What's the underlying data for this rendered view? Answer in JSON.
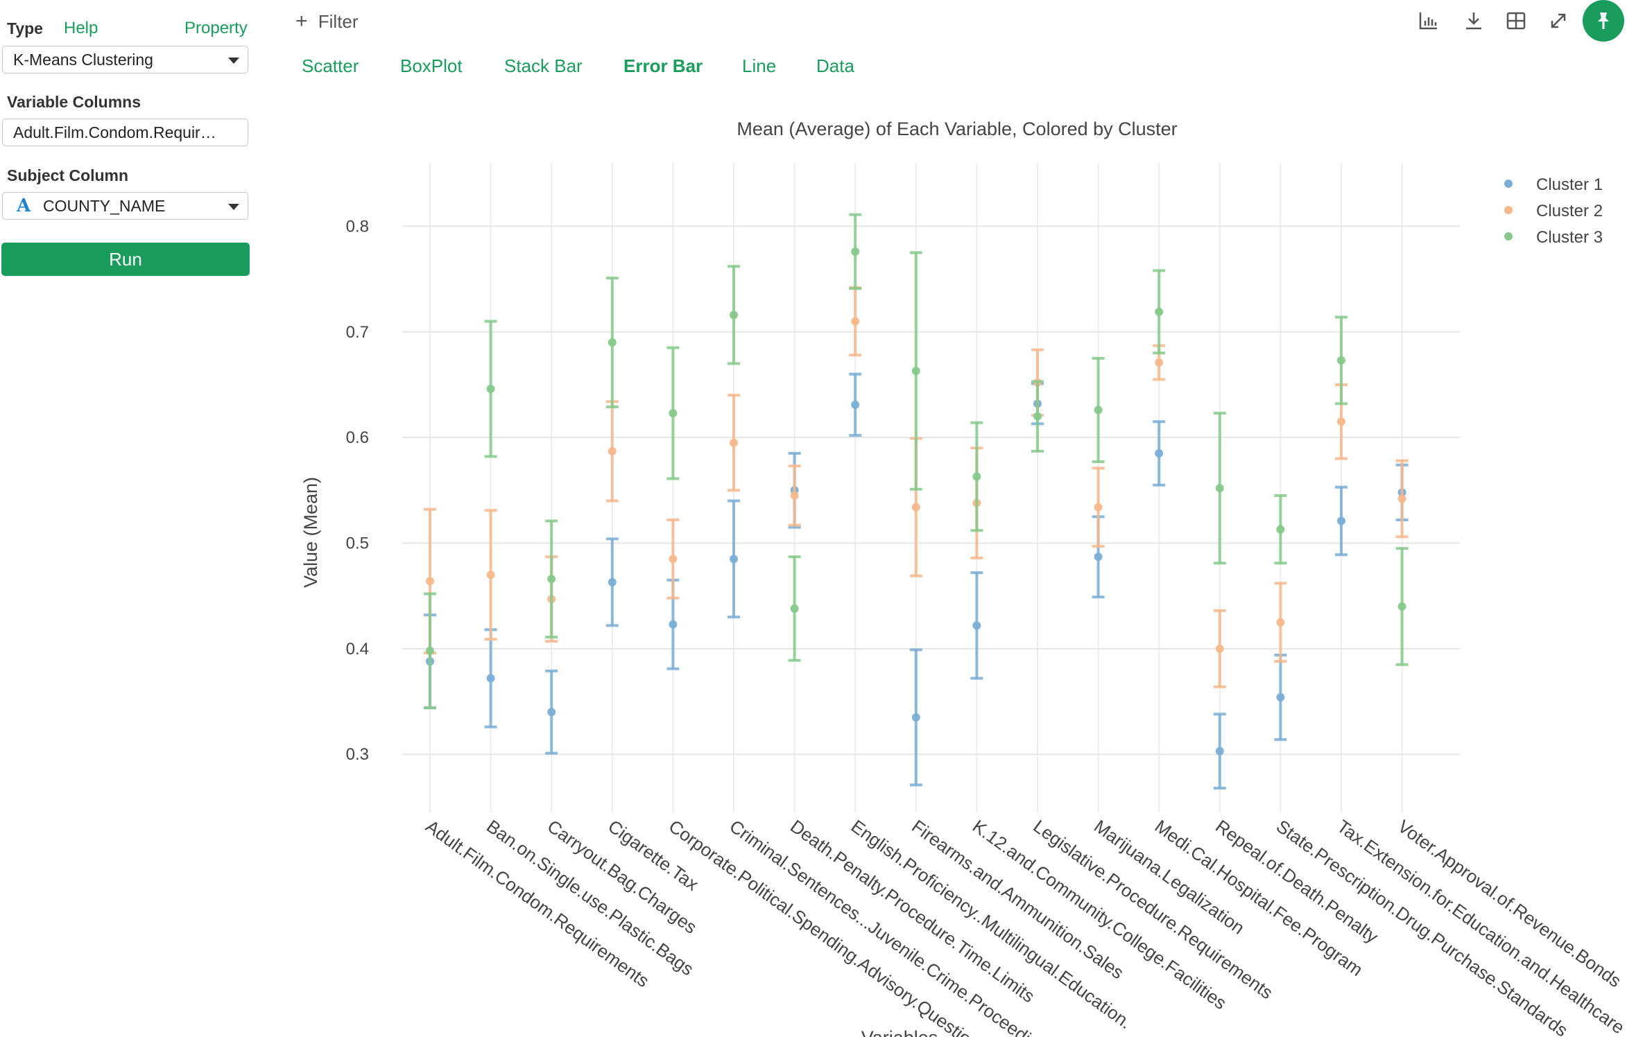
{
  "sidebar": {
    "type_label": "Type",
    "help_link": "Help",
    "property_link": "Property",
    "type_value": "K-Means Clustering",
    "variable_columns_label": "Variable Columns",
    "variable_columns_value": "Adult.Film.Condom.Requir…",
    "subject_column_label": "Subject Column",
    "subject_type_icon": "A",
    "subject_column_value": "COUNTY_NAME",
    "run_label": "Run"
  },
  "toolbar": {
    "filter_icon": "+",
    "filter_label": "Filter"
  },
  "tabs": [
    {
      "label": "Scatter",
      "active": false
    },
    {
      "label": "BoxPlot",
      "active": false
    },
    {
      "label": "Stack Bar",
      "active": false
    },
    {
      "label": "Error Bar",
      "active": true
    },
    {
      "label": "Line",
      "active": false
    },
    {
      "label": "Data",
      "active": false
    }
  ],
  "colors": {
    "accent": "#1a9c5c",
    "cluster_1": "#7aaed6",
    "cluster_2": "#f6b88c",
    "cluster_3": "#86c98a"
  },
  "chart_data": {
    "type": "scatter",
    "title": "Mean (Average) of Each Variable, Colored by Cluster",
    "xlabel": "Variables",
    "ylabel": "Value (Mean)",
    "ylim": [
      0.245,
      0.86
    ],
    "yticks": [
      0.3,
      0.4,
      0.5,
      0.6,
      0.7,
      0.8
    ],
    "ytick_labels": [
      "0.3",
      "0.4",
      "0.5",
      "0.6",
      "0.7",
      "0.8"
    ],
    "grid": true,
    "legend_position": "top-right",
    "categories": [
      "Adult.Film.Condom.Requirements",
      "Ban.on.Single.use.Plastic.Bags",
      "Carryout.Bag.Charges",
      "Cigarette.Tax",
      "Corporate.Political.Spending.Advisory.Question",
      "Criminal.Sentences...Juvenile.Crime.Proceedings",
      "Death.Penalty.Procedure.Time.Limits",
      "English.Proficiency..Multilingual.Education.",
      "Firearms.and.Ammunition.Sales",
      "K.12.and.Community.College.Facilities",
      "Legislative.Procedure.Requirements",
      "Marijuana.Legalization",
      "Medi.Cal.Hospital.Fee.Program",
      "Repeal.of.Death.Penalty",
      "State.Prescription.Drug.Purchase.Standards",
      "Tax.Extension.for.Education.and.Healthcare",
      "Voter.Approval.of.Revenue.Bonds"
    ],
    "series": [
      {
        "name": "Cluster 1",
        "color": "#7aaed6",
        "values": [
          0.388,
          0.372,
          0.34,
          0.463,
          0.423,
          0.485,
          0.55,
          0.631,
          0.335,
          0.422,
          0.632,
          0.487,
          0.585,
          0.303,
          0.354,
          0.521,
          0.548
        ],
        "error": [
          0.044,
          0.046,
          0.039,
          0.041,
          0.042,
          0.055,
          0.035,
          0.029,
          0.064,
          0.05,
          0.019,
          0.038,
          0.03,
          0.035,
          0.04,
          0.032,
          0.026
        ]
      },
      {
        "name": "Cluster 2",
        "color": "#f6b88c",
        "values": [
          0.464,
          0.47,
          0.447,
          0.587,
          0.485,
          0.595,
          0.545,
          0.71,
          0.534,
          0.538,
          0.652,
          0.534,
          0.671,
          0.4,
          0.425,
          0.615,
          0.542
        ],
        "error": [
          0.068,
          0.061,
          0.04,
          0.047,
          0.037,
          0.045,
          0.028,
          0.032,
          0.065,
          0.052,
          0.031,
          0.037,
          0.016,
          0.036,
          0.037,
          0.035,
          0.036
        ]
      },
      {
        "name": "Cluster 3",
        "color": "#86c98a",
        "values": [
          0.398,
          0.646,
          0.466,
          0.69,
          0.623,
          0.716,
          0.438,
          0.776,
          0.663,
          0.563,
          0.62,
          0.626,
          0.719,
          0.552,
          0.513,
          0.673,
          0.44
        ],
        "error": [
          0.054,
          0.064,
          0.055,
          0.061,
          0.062,
          0.046,
          0.049,
          0.035,
          0.112,
          0.051,
          0.033,
          0.049,
          0.039,
          0.071,
          0.032,
          0.041,
          0.055
        ]
      }
    ]
  }
}
